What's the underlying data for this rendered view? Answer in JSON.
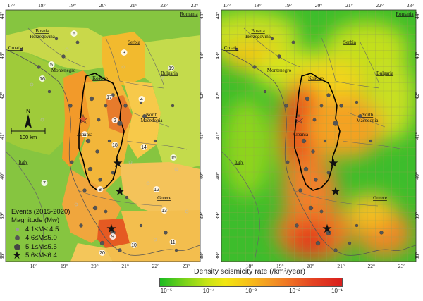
{
  "left_map": {
    "top_ticks": [
      "17°",
      "18°",
      "19°",
      "20°",
      "21°",
      "22°",
      "23°"
    ],
    "bottom_ticks": [
      "18°",
      "19°",
      "20°",
      "21°",
      "22°",
      "23°"
    ],
    "lat_ticks": [
      "44°",
      "43°",
      "42°",
      "41°",
      "40°",
      "39°",
      "38°"
    ],
    "countries": [
      {
        "name": "Romania"
      },
      {
        "name": "Bosnia\nHerzegovina"
      },
      {
        "name": "Serbia"
      },
      {
        "name": "Croatia"
      },
      {
        "name": "Montenegro"
      },
      {
        "name": "Kosovo"
      },
      {
        "name": "Bulgaria"
      },
      {
        "name": "North\nMacedonia"
      },
      {
        "name": "Albania"
      },
      {
        "name": "Italy"
      },
      {
        "name": "Greece"
      }
    ],
    "zone_numbers": [
      "1",
      "2",
      "3",
      "4",
      "5",
      "6",
      "7",
      "8",
      "9",
      "10",
      "11",
      "12",
      "13",
      "14",
      "15",
      "16",
      "17",
      "18",
      "19",
      "20"
    ],
    "north_label": "N",
    "scale_label": "100 km"
  },
  "right_map": {
    "top_ticks": [
      "17°",
      "18°",
      "19°",
      "20°",
      "21°",
      "22°",
      "23°"
    ],
    "bottom_ticks": [
      "18°",
      "19°",
      "20°",
      "21°",
      "22°",
      "23°"
    ],
    "lat_ticks": [
      "44°",
      "43°",
      "42°",
      "41°",
      "40°",
      "39°",
      "38°"
    ],
    "countries": [
      {
        "name": "Romania"
      },
      {
        "name": "Bosnia\nHerzegovina"
      },
      {
        "name": "Serbia"
      },
      {
        "name": "Croatia"
      },
      {
        "name": "Montenegro"
      },
      {
        "name": "Kosovo"
      },
      {
        "name": "Bulgaria"
      },
      {
        "name": "North\nMacedonia"
      },
      {
        "name": "Albania"
      },
      {
        "name": "Italy"
      },
      {
        "name": "Greece"
      }
    ]
  },
  "legend": {
    "title1": "Events (2015-2020)",
    "title2": "Magnitude (Mw)",
    "items": [
      {
        "label": "4.1≤M≤ 4.5"
      },
      {
        "label": "4.6≤M≤5.0"
      },
      {
        "label": "5.1≤M≤5.5"
      },
      {
        "label": "5.6≤M≤6.4"
      }
    ]
  },
  "colorbar": {
    "title": "Density seismicity rate (/km²/year)",
    "labels": [
      "10⁻⁵",
      "10⁻⁴",
      "10⁻³",
      "10⁻²",
      "10⁻¹"
    ],
    "colors": [
      "#1bbb21",
      "#7cd31a",
      "#f2e611",
      "#f39a23",
      "#d91f1d"
    ]
  },
  "colors": {
    "low": "#7dc832",
    "mid": "#f5b830",
    "high": "#e8682a",
    "border": "#000000"
  }
}
